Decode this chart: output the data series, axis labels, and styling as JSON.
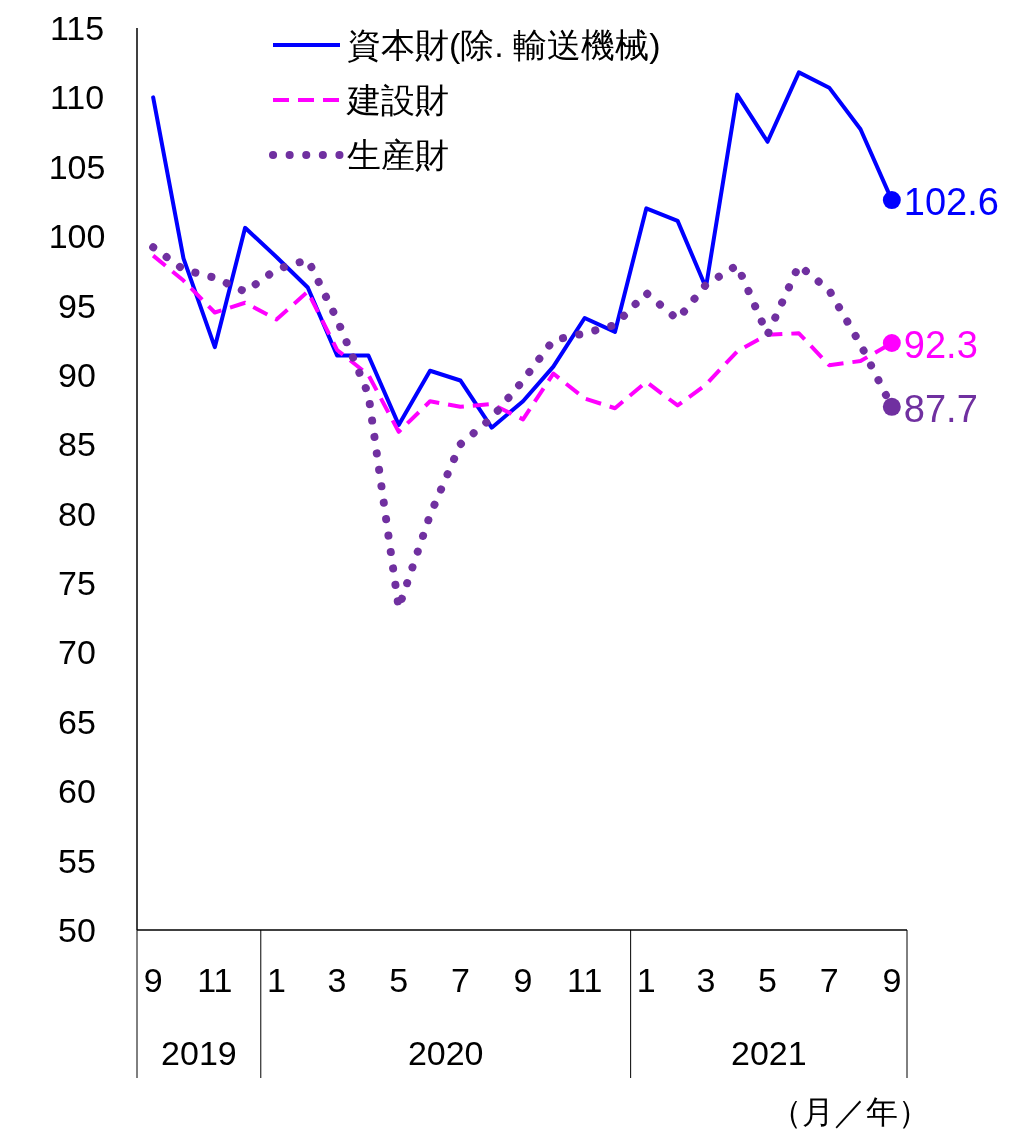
{
  "chart_data": {
    "type": "line",
    "x": [
      "2019-09",
      "2019-10",
      "2019-11",
      "2019-12",
      "2020-01",
      "2020-02",
      "2020-03",
      "2020-04",
      "2020-05",
      "2020-06",
      "2020-07",
      "2020-08",
      "2020-09",
      "2020-10",
      "2020-11",
      "2020-12",
      "2021-01",
      "2021-02",
      "2021-03",
      "2021-04",
      "2021-05",
      "2021-06",
      "2021-07",
      "2021-08",
      "2021-09"
    ],
    "xlim": [
      "2019-08-16",
      "2021-09-16"
    ],
    "xticks": [
      {
        "value": "2019-09",
        "label": "9"
      },
      {
        "value": "2019-11",
        "label": "11"
      },
      {
        "value": "2020-01",
        "label": "1"
      },
      {
        "value": "2020-03",
        "label": "3"
      },
      {
        "value": "2020-05",
        "label": "5"
      },
      {
        "value": "2020-07",
        "label": "7"
      },
      {
        "value": "2020-09",
        "label": "9"
      },
      {
        "value": "2020-11",
        "label": "11"
      },
      {
        "value": "2021-01",
        "label": "1"
      },
      {
        "value": "2021-03",
        "label": "3"
      },
      {
        "value": "2021-05",
        "label": "5"
      },
      {
        "value": "2021-07",
        "label": "7"
      },
      {
        "value": "2021-09",
        "label": "9"
      }
    ],
    "ylim": [
      50,
      115
    ],
    "yticks": [
      50,
      55,
      60,
      65,
      70,
      75,
      80,
      85,
      90,
      95,
      100,
      105,
      110,
      115
    ],
    "grid": false,
    "legend": "top",
    "annotations": [
      "2019",
      "2020",
      "2021",
      "（月／年）"
    ],
    "series": [
      {
        "name": "資本財(除. 輸送機械)",
        "color": "#0000ff",
        "line_style": "solid",
        "values": [
          110,
          98.4,
          92.0,
          100.6,
          98.5,
          96.3,
          91.4,
          91.4,
          86.4,
          90.3,
          89.6,
          86.2,
          88.1,
          90.6,
          94.1,
          93.1,
          102.0,
          101.1,
          96.3,
          110.2,
          106.8,
          111.8,
          110.7,
          107.7,
          102.6
        ],
        "value_labels": [
          null,
          null,
          null,
          null,
          null,
          null,
          null,
          null,
          null,
          null,
          null,
          null,
          null,
          null,
          null,
          null,
          null,
          null,
          null,
          null,
          null,
          null,
          null,
          null,
          "102.6"
        ]
      },
      {
        "name": "建設財",
        "color": "#ff00ff",
        "line_style": "dashed",
        "values": [
          98.6,
          96.8,
          94.5,
          95.2,
          94.0,
          96.0,
          91.8,
          90.0,
          85.9,
          88.1,
          87.7,
          87.9,
          86.8,
          90.1,
          88.3,
          87.6,
          89.5,
          87.8,
          89.3,
          91.7,
          92.9,
          93.0,
          90.7,
          91.0,
          92.3
        ],
        "value_labels": [
          null,
          null,
          null,
          null,
          null,
          null,
          null,
          null,
          null,
          null,
          null,
          null,
          null,
          null,
          null,
          null,
          null,
          null,
          null,
          null,
          null,
          null,
          null,
          null,
          "92.3"
        ]
      },
      {
        "name": "生産財",
        "color": "#7030a0",
        "line_style": "dotted",
        "values": [
          99.2,
          97.6,
          97.0,
          96.0,
          97.6,
          98.3,
          94.0,
          88.6,
          73.2,
          79.9,
          85.0,
          86.9,
          89.6,
          92.5,
          93.0,
          93.6,
          95.9,
          94.0,
          96.5,
          97.9,
          92.9,
          97.9,
          96.1,
          92.2,
          87.7
        ],
        "value_labels": [
          null,
          null,
          null,
          null,
          null,
          null,
          null,
          null,
          null,
          null,
          null,
          null,
          null,
          null,
          null,
          null,
          null,
          null,
          null,
          null,
          null,
          null,
          null,
          null,
          "87.7"
        ]
      }
    ]
  }
}
